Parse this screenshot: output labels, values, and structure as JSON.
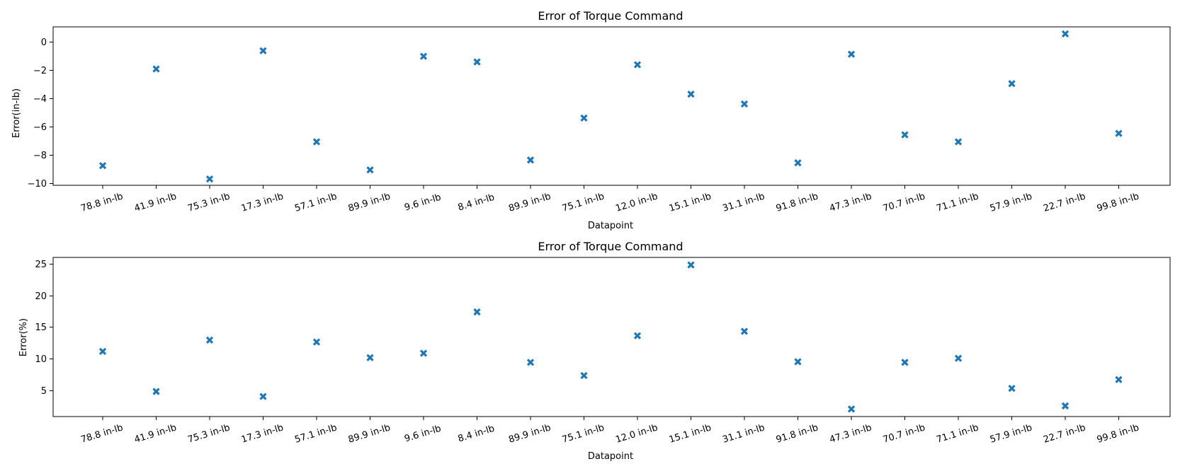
{
  "colors": {
    "marker": "#1f77b4",
    "axes": "#000000",
    "background": "#ffffff"
  },
  "chart_data": [
    {
      "type": "scatter",
      "title": "Error of Torque Command",
      "xlabel": "Datapoint",
      "ylabel": "Error(in-lb)",
      "marker": "filled-x",
      "grid": false,
      "ylim": [
        -10.2,
        1.1
      ],
      "yticks": [
        "0",
        "−10",
        "−8",
        "−6",
        "−4",
        "−2"
      ],
      "categories": [
        "78.8 in-lb",
        "41.9 in-lb",
        "75.3 in-lb",
        "17.3 in-lb",
        "57.1 in-lb",
        "89.9 in-lb",
        "9.6 in-lb",
        "8.4 in-lb",
        "89.9 in-lb",
        "75.1 in-lb",
        "12.0 in-lb",
        "15.1 in-lb",
        "31.1 in-lb",
        "91.8 in-lb",
        "47.3 in-lb",
        "70.7 in-lb",
        "71.1 in-lb",
        "57.9 in-lb",
        "22.7 in-lb",
        "99.8 in-lb"
      ],
      "values": [
        -8.8,
        -1.9,
        -9.75,
        -0.6,
        -7.1,
        -9.1,
        -1.0,
        -1.4,
        -8.4,
        -5.4,
        -1.6,
        -3.7,
        -4.4,
        -8.6,
        -0.85,
        -6.6,
        -7.1,
        -2.95,
        0.6,
        -6.5
      ]
    },
    {
      "type": "scatter",
      "title": "Error of Torque Command",
      "xlabel": "Datapoint",
      "ylabel": "Error(%)",
      "marker": "filled-x",
      "grid": false,
      "ylim": [
        0.7,
        26.1
      ],
      "yticks": [
        "5",
        "10",
        "15",
        "20",
        "25"
      ],
      "categories": [
        "78.8 in-lb",
        "41.9 in-lb",
        "75.3 in-lb",
        "17.3 in-lb",
        "57.1 in-lb",
        "89.9 in-lb",
        "9.6 in-lb",
        "8.4 in-lb",
        "89.9 in-lb",
        "75.1 in-lb",
        "12.0 in-lb",
        "15.1 in-lb",
        "31.1 in-lb",
        "91.8 in-lb",
        "47.3 in-lb",
        "70.7 in-lb",
        "71.1 in-lb",
        "57.9 in-lb",
        "22.7 in-lb",
        "99.8 in-lb"
      ],
      "values": [
        11.1,
        4.7,
        12.9,
        3.9,
        12.6,
        10.1,
        10.8,
        17.4,
        9.35,
        7.25,
        13.6,
        24.9,
        14.3,
        9.45,
        1.9,
        9.35,
        10.0,
        5.2,
        2.4,
        6.6
      ]
    }
  ]
}
